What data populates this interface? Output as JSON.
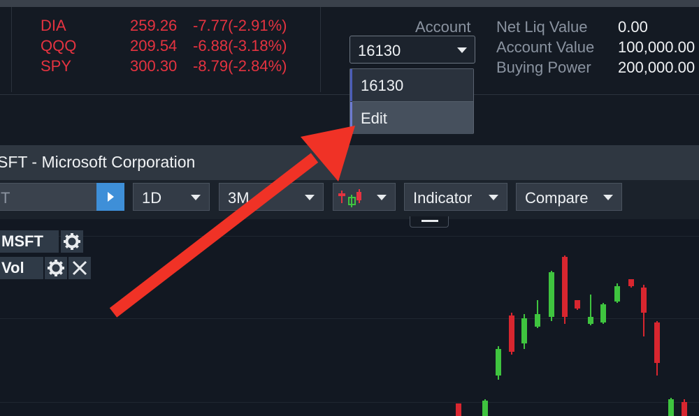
{
  "tickers": [
    {
      "symbol": "DIA",
      "price": "259.26",
      "change": "-7.77(-2.91%)"
    },
    {
      "symbol": "QQQ",
      "price": "209.54",
      "change": "-6.88(-3.18%)"
    },
    {
      "symbol": "SPY",
      "price": "300.30",
      "change": "-8.79(-2.84%)"
    }
  ],
  "account": {
    "label": "Account",
    "selected": "16130",
    "dropdown_options": [
      "16130",
      "Edit"
    ]
  },
  "metrics": [
    {
      "label": "Net Liq Value",
      "value": "0.00"
    },
    {
      "label": "Account Value",
      "value": "100,000.00"
    },
    {
      "label": "Buying Power",
      "value": "200,000.00"
    }
  ],
  "chart_panel": {
    "title": "SFT - Microsoft Corporation",
    "symbol_input": "T",
    "interval": "1D",
    "range": "3M",
    "indicator_label": "Indicator",
    "compare_label": "Compare",
    "legend": [
      {
        "name": "MSFT"
      },
      {
        "name": "Vol"
      }
    ]
  },
  "colors": {
    "negative": "#e53340",
    "up_candle": "#3fc43f",
    "down_candle": "#d8262f",
    "accent": "#3e8fd8",
    "annotation_arrow": "#f03226"
  },
  "icons": {
    "go": "play-triangle-icon",
    "candle": "candlestick-icon",
    "settings": "gear-icon",
    "close": "close-icon",
    "dropdown": "chevron-down-icon"
  }
}
